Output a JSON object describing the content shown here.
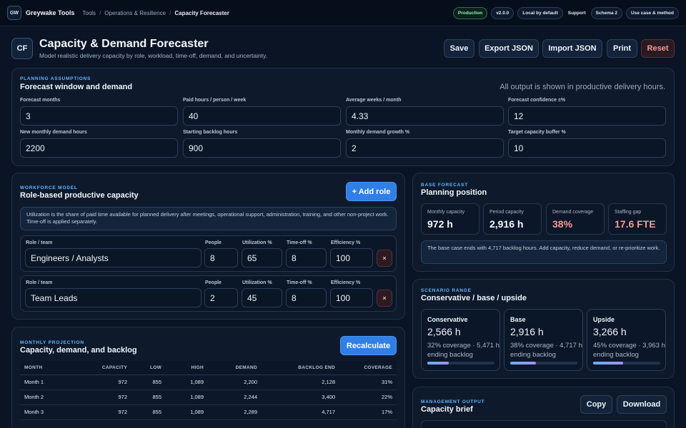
{
  "topbar": {
    "logo": "GW",
    "brand": "Greywake Tools",
    "breadcrumb": [
      "Tools",
      "Operations & Resilience",
      "Capacity Forecaster"
    ],
    "badges": {
      "env": "Production",
      "version": "v2.0.0",
      "local": "Local by default",
      "support": "Support",
      "schema": "Schema 2",
      "method": "Use case & method"
    }
  },
  "header": {
    "logo": "CF",
    "title": "Capacity & Demand Forecaster",
    "subtitle": "Model realistic delivery capacity by role, workload, time-off, demand, and uncertainty.",
    "buttons": {
      "save": "Save",
      "export": "Export JSON",
      "import": "Import JSON",
      "print": "Print",
      "reset": "Reset"
    }
  },
  "assumptions": {
    "kicker": "Planning assumptions",
    "title": "Forecast window and demand",
    "note": "All output is shown in productive delivery hours.",
    "fields": [
      {
        "label": "Forecast months",
        "value": "3"
      },
      {
        "label": "Paid hours / person / week",
        "value": "40"
      },
      {
        "label": "Average weeks / month",
        "value": "4.33"
      },
      {
        "label": "Forecast confidence ±%",
        "value": "12"
      },
      {
        "label": "New monthly demand hours",
        "value": "2200"
      },
      {
        "label": "Starting backlog hours",
        "value": "900"
      },
      {
        "label": "Monthly demand growth %",
        "value": "2"
      },
      {
        "label": "Target capacity buffer %",
        "value": "10"
      }
    ]
  },
  "workforce": {
    "kicker": "Workforce model",
    "title": "Role-based productive capacity",
    "add_button": "+ Add role",
    "info": "Utilization is the share of paid time available for planned delivery after meetings, operational support, administration, training, and other non-project work. Time-off is applied separately.",
    "labels": {
      "role": "Role / team",
      "people": "People",
      "utilization": "Utilization %",
      "timeoff": "Time-off %",
      "efficiency": "Efficiency %"
    },
    "remove_symbol": "×",
    "roles": [
      {
        "name": "Engineers / Analysts",
        "people": "8",
        "utilization": "65",
        "timeoff": "8",
        "efficiency": "100"
      },
      {
        "name": "Team Leads",
        "people": "2",
        "utilization": "45",
        "timeoff": "8",
        "efficiency": "100"
      }
    ]
  },
  "base": {
    "kicker": "Base forecast",
    "title": "Planning position",
    "stats": [
      {
        "label": "Monthly capacity",
        "value": "972 h"
      },
      {
        "label": "Period capacity",
        "value": "2,916 h"
      },
      {
        "label": "Demand coverage",
        "value": "38%"
      },
      {
        "label": "Staffing gap",
        "value": "17.6 FTE"
      }
    ],
    "message": "The base case ends with 4,717 backlog hours. Add capacity, reduce demand, or re-prioritize work."
  },
  "scenario": {
    "kicker": "Scenario range",
    "title": "Conservative / base / upside",
    "cards": [
      {
        "name": "Conservative",
        "hours": "2,566 h",
        "detail": "32% coverage · 5,471 h ending backlog",
        "coverage": 0.32
      },
      {
        "name": "Base",
        "hours": "2,916 h",
        "detail": "38% coverage · 4,717 h ending backlog",
        "coverage": 0.38
      },
      {
        "name": "Upside",
        "hours": "3,266 h",
        "detail": "45% coverage · 3,963 h ending backlog",
        "coverage": 0.45
      }
    ]
  },
  "projection": {
    "kicker": "Monthly projection",
    "title": "Capacity, demand, and backlog",
    "button": "Recalculate",
    "columns": [
      "Month",
      "Capacity",
      "Low",
      "High",
      "Demand",
      "Backlog end",
      "Coverage"
    ],
    "rows": [
      [
        "Month 1",
        "972",
        "855",
        "1,089",
        "2,200",
        "2,128",
        "31%"
      ],
      [
        "Month 2",
        "972",
        "855",
        "1,089",
        "2,244",
        "3,400",
        "22%"
      ],
      [
        "Month 3",
        "972",
        "855",
        "1,089",
        "2,289",
        "4,717",
        "17%"
      ]
    ]
  },
  "management": {
    "kicker": "Management output",
    "title": "Capacity brief",
    "copy": "Copy",
    "download": "Download"
  }
}
